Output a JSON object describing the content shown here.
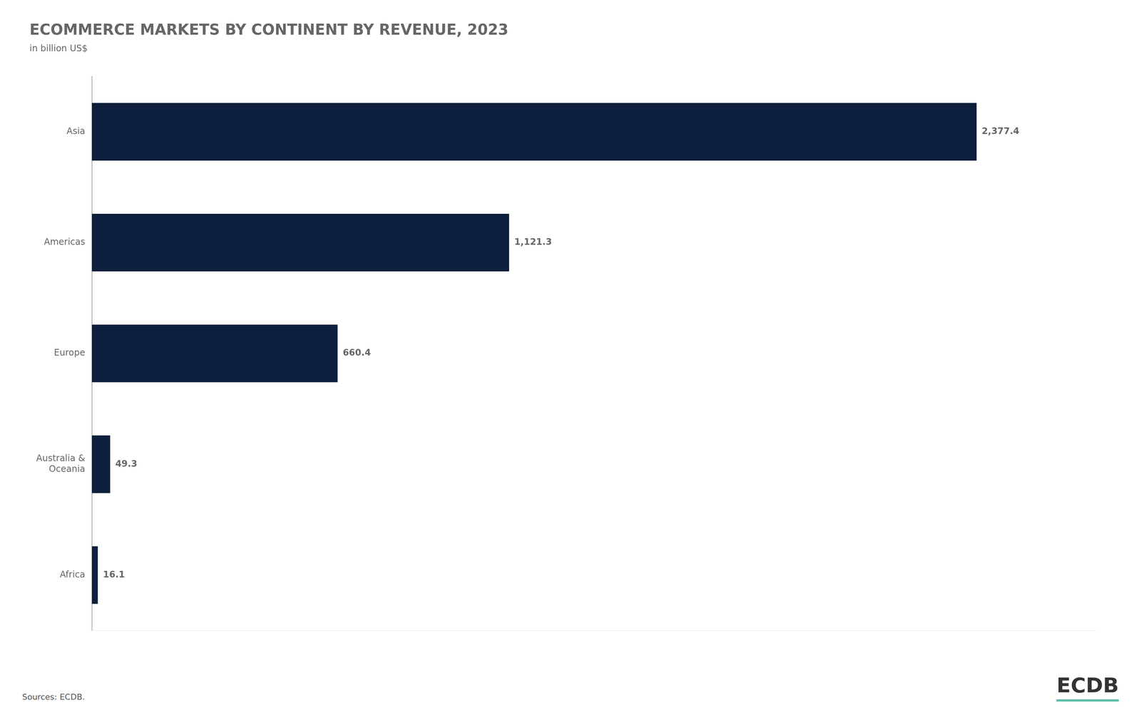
{
  "chart_data": {
    "type": "bar",
    "orientation": "horizontal",
    "title": "ECOMMERCE MARKETS BY CONTINENT BY REVENUE, 2023",
    "subtitle": "in billion US$",
    "categories": [
      "Asia",
      "Americas",
      "Europe",
      "Australia &\nOceania",
      "Africa"
    ],
    "values": [
      2377.4,
      1121.3,
      660.4,
      49.3,
      16.1
    ],
    "value_labels": [
      "2,377.4",
      "1,121.3",
      "660.4",
      "49.3",
      "16.1"
    ],
    "data_labels": true,
    "color": "#0d1f3c",
    "xlim": [
      0,
      2700
    ],
    "tick_labels": "y",
    "grid": false,
    "annotations": [
      "Sources: ECDB.",
      "ECDB"
    ]
  }
}
